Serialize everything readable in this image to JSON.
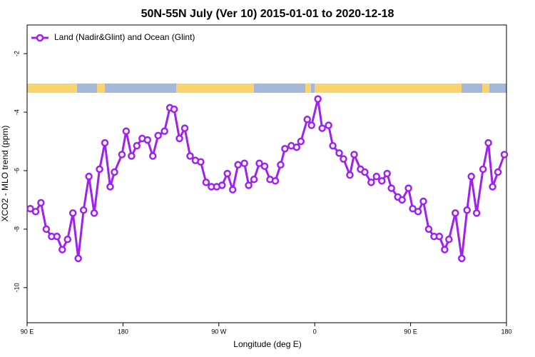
{
  "chart_data": {
    "type": "line",
    "title": "50N-55N July (Ver 10)   2015-01-01 to 2020-12-18",
    "x_label": "Longitude (deg E)",
    "y_label": "XCO2 - MLO trend (ppm)",
    "legend_position": "upper left",
    "xlim": [
      90,
      540
    ],
    "ylim": [
      -11.2,
      -1.02
    ],
    "xticks": [
      {
        "value": 90,
        "label": "90 E"
      },
      180,
      {
        "value": 270,
        "label": "90 W"
      },
      {
        "value": 360,
        "label": "0"
      },
      {
        "value": 450,
        "label": "90 E"
      },
      {
        "value": 540,
        "label": "180"
      }
    ],
    "yticks": [
      -2,
      -4,
      -6,
      -8,
      -10
    ],
    "x": [
      93,
      98,
      103,
      108,
      113,
      118,
      123,
      128,
      133,
      138,
      143,
      148,
      153,
      158,
      163,
      168,
      172,
      179,
      183,
      188,
      193,
      198,
      203,
      208,
      213,
      219,
      224,
      228,
      233,
      238,
      243,
      248,
      253,
      258,
      263,
      268,
      273,
      278,
      283,
      288,
      294,
      298,
      303,
      308,
      313,
      318,
      323,
      328,
      332,
      338,
      343,
      347,
      353,
      357,
      363,
      367,
      373,
      377,
      383,
      387,
      393,
      397,
      403,
      407,
      413,
      418,
      423,
      428,
      432,
      438,
      442,
      448,
      452,
      457,
      462,
      467,
      472,
      477,
      482,
      486,
      492,
      498,
      503,
      507,
      512,
      518,
      523,
      527,
      532,
      538
    ],
    "series": [
      {
        "name": "Land (Nadir&Glint) and Ocean (Glint)",
        "color": "#a020f0",
        "values": [
          -7.3,
          -7.4,
          -7.1,
          -8.0,
          -8.25,
          -8.25,
          -8.7,
          -8.35,
          -7.45,
          -9.0,
          -7.35,
          -6.2,
          -7.45,
          -5.95,
          -5.05,
          -6.55,
          -6.05,
          -5.45,
          -4.65,
          -5.5,
          -5.15,
          -4.9,
          -4.95,
          -5.5,
          -4.8,
          -4.65,
          -3.85,
          -3.9,
          -4.9,
          -4.55,
          -5.5,
          -5.65,
          -5.7,
          -6.4,
          -6.55,
          -6.55,
          -6.5,
          -6.1,
          -6.65,
          -5.8,
          -5.75,
          -6.5,
          -6.3,
          -5.75,
          -5.85,
          -6.3,
          -6.35,
          -5.8,
          -5.25,
          -5.15,
          -5.2,
          -5.0,
          -4.25,
          -4.45,
          -3.55,
          -4.55,
          -4.45,
          -5.15,
          -5.4,
          -5.6,
          -6.15,
          -5.45,
          -5.95,
          -6.05,
          -6.4,
          -6.2,
          -6.35,
          -6.1,
          -6.6,
          -6.9,
          -7.0,
          -6.6,
          -7.3,
          -7.4,
          -7.05,
          -8.0,
          -8.25,
          -8.25,
          -8.7,
          -8.35,
          -7.45,
          -9.0,
          -7.35,
          -6.2,
          -7.45,
          -5.95,
          -5.05,
          -6.55,
          -6.05,
          -5.45
        ]
      }
    ]
  }
}
